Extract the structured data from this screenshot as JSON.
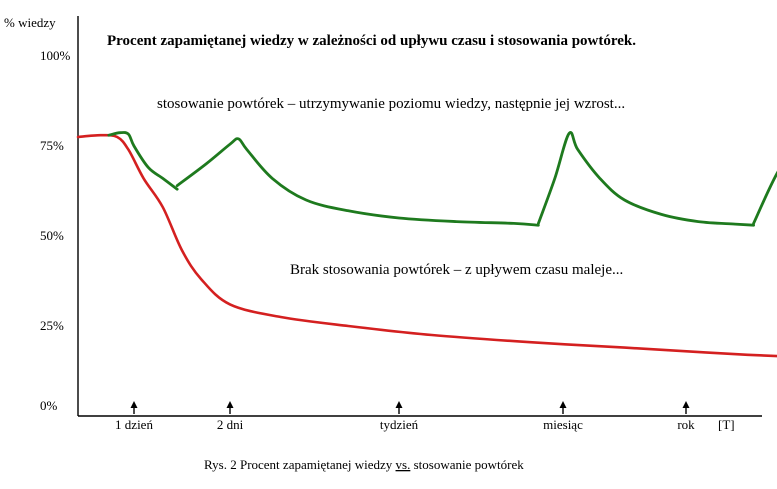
{
  "chart_data": {
    "type": "line",
    "title": "Procent zapamiętanej wiedzy w zależności od upływu czasu i stosowania powtórek.",
    "ylabel": "% wiedzy",
    "xlabel_unit": "[T]",
    "ylim": [
      0,
      100
    ],
    "y_ticks": [
      "0%",
      "25%",
      "50%",
      "75%",
      "100%"
    ],
    "x_ticks": [
      "1 dzień",
      "2 dni",
      "tydzień",
      "miesiąc",
      "rok"
    ],
    "grid": false,
    "series": [
      {
        "name": "stosowanie powtórek – utrzymywanie poziomu wiedzy, następnie jej wzrost...",
        "color": "#1e7a1e",
        "segments": [
          [
            [
              0.55,
              78
            ],
            [
              0.75,
              78.7
            ],
            [
              0.9,
              78.3
            ],
            [
              1.0,
              75
            ],
            [
              1.15,
              69
            ],
            [
              1.3,
              66
            ],
            [
              1.45,
              63
            ]
          ],
          [
            [
              1.45,
              64
            ],
            [
              1.75,
              70
            ],
            [
              2.0,
              75.5
            ],
            [
              2.05,
              77
            ],
            [
              2.1,
              74
            ],
            [
              2.25,
              66
            ],
            [
              2.45,
              60
            ],
            [
              2.7,
              57
            ],
            [
              3.0,
              55
            ],
            [
              3.35,
              54
            ],
            [
              3.7,
              53.5
            ],
            [
              3.85,
              53
            ]
          ],
          [
            [
              3.85,
              53.5
            ],
            [
              3.95,
              66
            ],
            [
              4.05,
              78.5
            ],
            [
              4.12,
              74
            ],
            [
              4.3,
              66
            ],
            [
              4.5,
              60
            ],
            [
              4.8,
              56
            ],
            [
              5.1,
              54
            ],
            [
              5.4,
              53.3
            ],
            [
              5.55,
              53
            ]
          ],
          [
            [
              5.55,
              53.5
            ],
            [
              5.75,
              68
            ],
            [
              5.95,
              77
            ],
            [
              6.05,
              75
            ],
            [
              6.25,
              67
            ],
            [
              6.55,
              62
            ],
            [
              6.85,
              59
            ],
            [
              7.15,
              57
            ],
            [
              7.38,
              56
            ]
          ],
          [
            [
              7.42,
              57
            ],
            [
              7.55,
              71
            ],
            [
              7.68,
              78
            ],
            [
              7.8,
              75
            ],
            [
              8.0,
              70
            ],
            [
              8.3,
              66
            ],
            [
              8.6,
              63
            ],
            [
              8.9,
              62
            ],
            [
              9.05,
              62.5
            ]
          ]
        ]
      },
      {
        "name": "Brak stosowania powtórek – z upływem czasu maleje...",
        "color": "#d42020",
        "points": [
          [
            0,
            77.5
          ],
          [
            0.4,
            78
          ],
          [
            0.7,
            77.5
          ],
          [
            0.9,
            74
          ],
          [
            1.1,
            66
          ],
          [
            1.3,
            58
          ],
          [
            1.5,
            46
          ],
          [
            1.7,
            38
          ],
          [
            2.0,
            31
          ],
          [
            2.3,
            27.5
          ],
          [
            2.7,
            25
          ],
          [
            3.2,
            22.5
          ],
          [
            3.8,
            20.5
          ],
          [
            4.5,
            19
          ],
          [
            5.5,
            17
          ],
          [
            6.5,
            15.5
          ],
          [
            7.5,
            14.5
          ],
          [
            8.2,
            14
          ]
        ]
      }
    ]
  },
  "caption": {
    "prefix": "Rys. 2 Procent zapamiętanej wiedzy",
    "vs": "vs.",
    "suffix": "stosowanie powtórek"
  }
}
